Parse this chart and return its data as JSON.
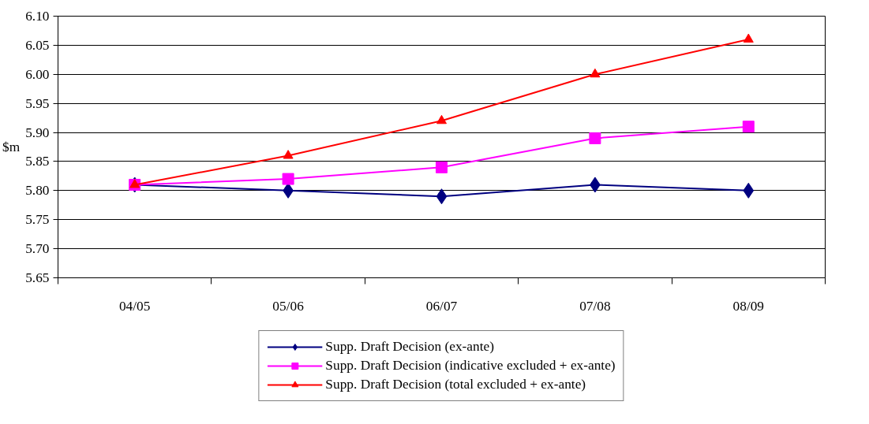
{
  "chart_data": {
    "type": "line",
    "ylabel": "$m",
    "categories": [
      "04/05",
      "05/06",
      "06/07",
      "07/08",
      "08/09"
    ],
    "series": [
      {
        "name": "Supp. Draft Decision (ex-ante)",
        "color": "#000080",
        "marker": "diamond",
        "values": [
          5.81,
          5.8,
          5.79,
          5.81,
          5.8
        ]
      },
      {
        "name": "Supp. Draft Decision (indicative excluded + ex-ante)",
        "color": "#ff00ff",
        "marker": "square",
        "values": [
          5.81,
          5.82,
          5.84,
          5.89,
          5.91
        ]
      },
      {
        "name": "Supp. Draft Decision (total excluded + ex-ante)",
        "color": "#ff0000",
        "marker": "triangle",
        "values": [
          5.81,
          5.86,
          5.92,
          6.0,
          6.06
        ]
      }
    ],
    "ylim": [
      5.65,
      6.1
    ],
    "yticks": [
      {
        "value": 5.65,
        "label": "5.65"
      },
      {
        "value": 5.7,
        "label": "5.70"
      },
      {
        "value": 5.75,
        "label": "5.75"
      },
      {
        "value": 5.8,
        "label": "5.80"
      },
      {
        "value": 5.85,
        "label": "5.85"
      },
      {
        "value": 5.9,
        "label": "5.90"
      },
      {
        "value": 5.95,
        "label": "5.95"
      },
      {
        "value": 6.0,
        "label": "6.00"
      },
      {
        "value": 6.05,
        "label": "6.05"
      },
      {
        "value": 6.1,
        "label": "6.10"
      }
    ],
    "grid": "y",
    "legend": "bottom"
  }
}
